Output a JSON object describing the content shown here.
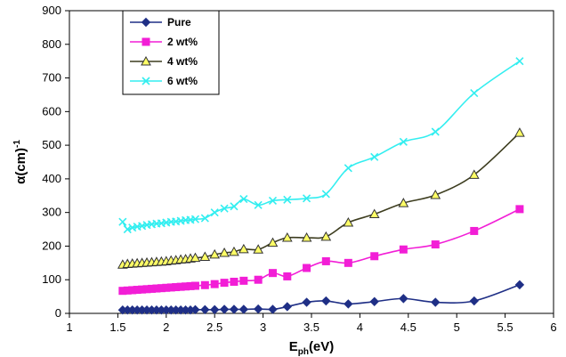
{
  "chart_data": {
    "type": "line",
    "title": "",
    "xlabel": {
      "main": "E",
      "sub": "ph",
      "rest": "(eV)"
    },
    "ylabel": {
      "main": "α(cm)",
      "sup": "-1"
    },
    "xlim": [
      1,
      6
    ],
    "ylim": [
      0,
      900
    ],
    "xticks": [
      "1",
      "1.5",
      "2",
      "2.5",
      "3",
      "3.5",
      "4",
      "4.5",
      "5",
      "5.5",
      "6"
    ],
    "yticks": [
      "0",
      "100",
      "200",
      "300",
      "400",
      "500",
      "600",
      "700",
      "800",
      "900"
    ],
    "grid": false,
    "legend_position": "top-left",
    "series": [
      {
        "name": "Pure",
        "color": "#1f2f86",
        "marker": "diamond",
        "points": [
          [
            1.55,
            10
          ],
          [
            1.6,
            10
          ],
          [
            1.65,
            10
          ],
          [
            1.7,
            10
          ],
          [
            1.75,
            10
          ],
          [
            1.8,
            10
          ],
          [
            1.85,
            10
          ],
          [
            1.9,
            10
          ],
          [
            1.95,
            10
          ],
          [
            2.0,
            10
          ],
          [
            2.05,
            10
          ],
          [
            2.1,
            10
          ],
          [
            2.15,
            10
          ],
          [
            2.2,
            10
          ],
          [
            2.25,
            10
          ],
          [
            2.3,
            11
          ],
          [
            2.4,
            11
          ],
          [
            2.5,
            11
          ],
          [
            2.6,
            12
          ],
          [
            2.7,
            12
          ],
          [
            2.8,
            12
          ],
          [
            2.95,
            13
          ],
          [
            3.1,
            12
          ],
          [
            3.25,
            20
          ],
          [
            3.45,
            33
          ],
          [
            3.65,
            37
          ],
          [
            3.88,
            28
          ],
          [
            4.15,
            35
          ],
          [
            4.45,
            44
          ],
          [
            4.78,
            33
          ],
          [
            5.18,
            37
          ],
          [
            5.65,
            85
          ]
        ]
      },
      {
        "name": "2 wt%",
        "color": "#f21ed6",
        "marker": "square",
        "points": [
          [
            1.55,
            67
          ],
          [
            1.6,
            68
          ],
          [
            1.65,
            69
          ],
          [
            1.7,
            70
          ],
          [
            1.75,
            71
          ],
          [
            1.8,
            72
          ],
          [
            1.85,
            73
          ],
          [
            1.9,
            74
          ],
          [
            1.95,
            75
          ],
          [
            2.0,
            76
          ],
          [
            2.05,
            77
          ],
          [
            2.1,
            78
          ],
          [
            2.15,
            79
          ],
          [
            2.2,
            80
          ],
          [
            2.25,
            81
          ],
          [
            2.3,
            82
          ],
          [
            2.4,
            84
          ],
          [
            2.5,
            87
          ],
          [
            2.6,
            91
          ],
          [
            2.7,
            94
          ],
          [
            2.8,
            97
          ],
          [
            2.95,
            100
          ],
          [
            3.1,
            120
          ],
          [
            3.25,
            110
          ],
          [
            3.45,
            135
          ],
          [
            3.65,
            155
          ],
          [
            3.88,
            150
          ],
          [
            4.15,
            170
          ],
          [
            4.45,
            190
          ],
          [
            4.78,
            205
          ],
          [
            5.18,
            245
          ],
          [
            5.65,
            310
          ]
        ]
      },
      {
        "name": "4 wt%",
        "color": "#3d3d1f",
        "markerColor": "#ffff66",
        "marker": "triangle",
        "points": [
          [
            1.55,
            145
          ],
          [
            1.6,
            147
          ],
          [
            1.65,
            148
          ],
          [
            1.7,
            149
          ],
          [
            1.75,
            150
          ],
          [
            1.8,
            151
          ],
          [
            1.85,
            152
          ],
          [
            1.9,
            153
          ],
          [
            1.95,
            154
          ],
          [
            2.0,
            155
          ],
          [
            2.05,
            157
          ],
          [
            2.1,
            158
          ],
          [
            2.15,
            160
          ],
          [
            2.2,
            161
          ],
          [
            2.25,
            163
          ],
          [
            2.3,
            165
          ],
          [
            2.4,
            168
          ],
          [
            2.5,
            175
          ],
          [
            2.6,
            180
          ],
          [
            2.7,
            183
          ],
          [
            2.8,
            191
          ],
          [
            2.95,
            190
          ],
          [
            3.1,
            210
          ],
          [
            3.25,
            225
          ],
          [
            3.45,
            225
          ],
          [
            3.65,
            228
          ],
          [
            3.88,
            270
          ],
          [
            4.15,
            295
          ],
          [
            4.45,
            328
          ],
          [
            4.78,
            352
          ],
          [
            5.18,
            412
          ],
          [
            5.65,
            537
          ]
        ]
      },
      {
        "name": "6 wt%",
        "color": "#33eef0",
        "marker": "x",
        "points": [
          [
            1.55,
            272
          ],
          [
            1.6,
            250
          ],
          [
            1.65,
            255
          ],
          [
            1.7,
            258
          ],
          [
            1.75,
            260
          ],
          [
            1.8,
            263
          ],
          [
            1.85,
            265
          ],
          [
            1.9,
            267
          ],
          [
            1.95,
            268
          ],
          [
            2.0,
            270
          ],
          [
            2.05,
            272
          ],
          [
            2.1,
            273
          ],
          [
            2.15,
            275
          ],
          [
            2.2,
            277
          ],
          [
            2.25,
            278
          ],
          [
            2.3,
            280
          ],
          [
            2.4,
            283
          ],
          [
            2.5,
            300
          ],
          [
            2.6,
            312
          ],
          [
            2.7,
            318
          ],
          [
            2.8,
            340
          ],
          [
            2.95,
            322
          ],
          [
            3.1,
            335
          ],
          [
            3.25,
            338
          ],
          [
            3.45,
            342
          ],
          [
            3.65,
            355
          ],
          [
            3.88,
            432
          ],
          [
            4.15,
            465
          ],
          [
            4.45,
            510
          ],
          [
            4.78,
            540
          ],
          [
            5.18,
            655
          ],
          [
            5.65,
            750
          ]
        ]
      }
    ]
  }
}
